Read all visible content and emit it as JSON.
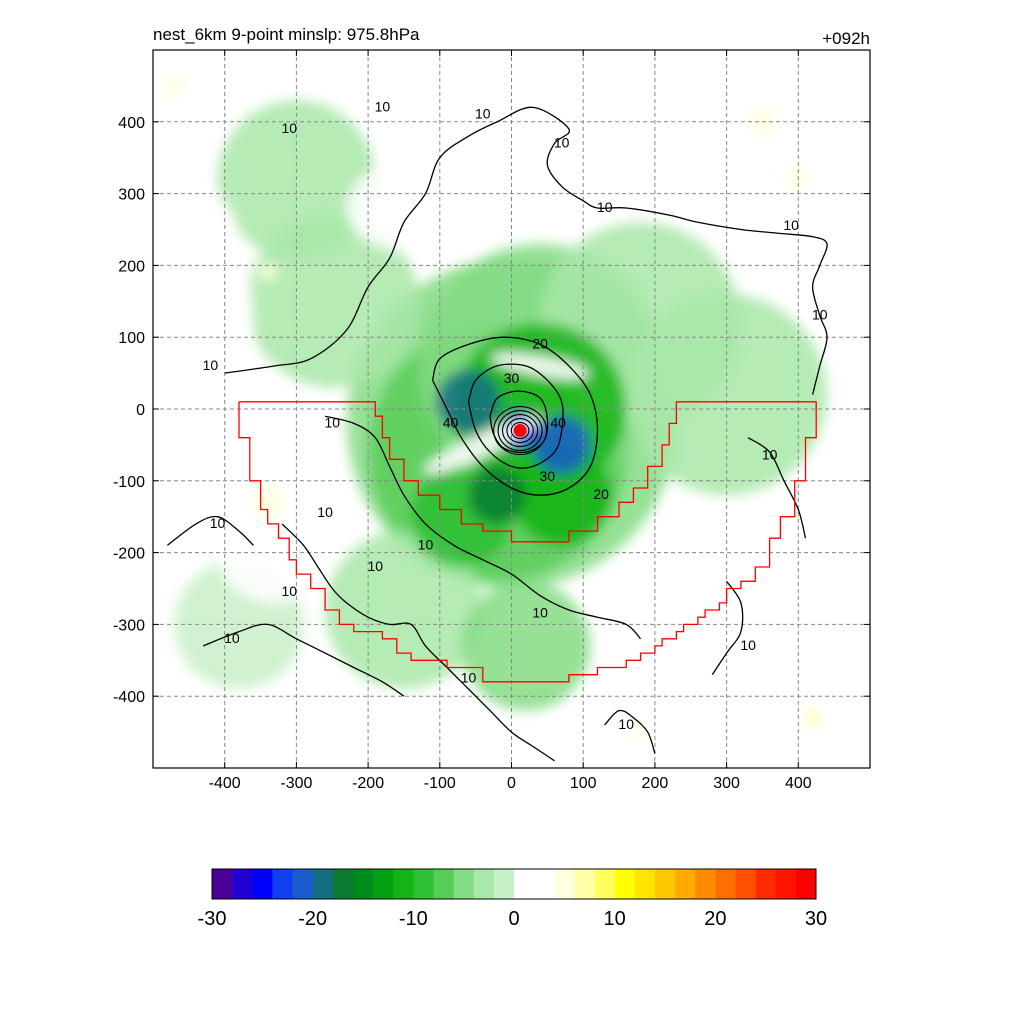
{
  "chart_data": {
    "type": "heatmap",
    "title": "nest_6km  9-point minslp: 975.8hPa",
    "time_label": "+092h",
    "xlabel": "",
    "ylabel": "",
    "xlim": [
      -500,
      500
    ],
    "ylim": [
      -500,
      500
    ],
    "x_ticks": [
      "-400",
      "-300",
      "-200",
      "-100",
      "0",
      "100",
      "200",
      "300",
      "400"
    ],
    "y_ticks": [
      "400",
      "300",
      "200",
      "100",
      "0",
      "-100",
      "-200",
      "-300",
      "-400"
    ],
    "grid": true,
    "storm_center": {
      "x": 12,
      "y": -30
    },
    "contour_levels": [
      "10",
      "20",
      "30",
      "40"
    ],
    "colorbar": {
      "min": -30,
      "max": 30,
      "tick_labels": [
        "-30",
        "-20",
        "-10",
        "0",
        "10",
        "20",
        "30"
      ],
      "colors": [
        "#4b0096",
        "#2200d4",
        "#0000ff",
        "#1040f0",
        "#1a5ccc",
        "#136e84",
        "#0a7a30",
        "#008c1c",
        "#00a010",
        "#14b414",
        "#2cc032",
        "#58ce58",
        "#84dc84",
        "#a8e8a8",
        "#c8f0c8",
        "#ffffff",
        "#ffffff",
        "#ffffe0",
        "#ffffa8",
        "#ffff60",
        "#ffff00",
        "#ffe400",
        "#ffc800",
        "#ffaa00",
        "#ff8c00",
        "#ff6e00",
        "#ff5000",
        "#ff2c00",
        "#ff1400",
        "#ff0000"
      ]
    },
    "blobs": [
      {
        "x": 0,
        "y": -20,
        "r": 230,
        "v": -5
      },
      {
        "x": -20,
        "y": -60,
        "r": 180,
        "v": -8
      },
      {
        "x": 40,
        "y": 60,
        "r": 170,
        "v": -6
      },
      {
        "x": 180,
        "y": 120,
        "r": 140,
        "v": -4
      },
      {
        "x": -250,
        "y": 150,
        "r": 120,
        "v": -3
      },
      {
        "x": -300,
        "y": 320,
        "r": 110,
        "v": -3
      },
      {
        "x": -150,
        "y": -280,
        "r": 110,
        "v": -3
      },
      {
        "x": 300,
        "y": 20,
        "r": 140,
        "v": -4
      },
      {
        "x": 20,
        "y": -330,
        "r": 90,
        "v": -5
      },
      {
        "x": -380,
        "y": -300,
        "r": 90,
        "v": -2
      },
      {
        "x": -70,
        "y": -150,
        "r": 70,
        "v": -10
      },
      {
        "x": 70,
        "y": -120,
        "r": 70,
        "v": -11
      },
      {
        "x": 40,
        "y": 0,
        "r": 120,
        "v": -12
      },
      {
        "x": -60,
        "y": 10,
        "r": 45,
        "v": -20
      },
      {
        "x": 70,
        "y": -50,
        "r": 40,
        "v": -22
      },
      {
        "x": -20,
        "y": -120,
        "r": 40,
        "v": -18
      },
      {
        "x": 12,
        "y": -30,
        "r": 25,
        "v": -26
      }
    ],
    "white_bands": [
      {
        "x": -40,
        "y": -50,
        "rx": 90,
        "ry": 16,
        "rot": -25
      },
      {
        "x": 40,
        "y": 60,
        "rx": 70,
        "ry": 14,
        "rot": 10
      },
      {
        "x": 420,
        "y": 260,
        "rx": 60,
        "ry": 120,
        "rot": 0
      },
      {
        "x": -420,
        "y": 100,
        "rx": 60,
        "ry": 200,
        "rot": 0
      },
      {
        "x": -330,
        "y": -200,
        "rx": 80,
        "ry": 70,
        "rot": 0
      },
      {
        "x": 300,
        "y": -250,
        "rx": 90,
        "ry": 110,
        "rot": 0
      },
      {
        "x": -150,
        "y": 280,
        "rx": 80,
        "ry": 60,
        "rot": 0
      }
    ],
    "yellow_spots": [
      {
        "x": -340,
        "y": -130,
        "r": 22,
        "v": 4
      },
      {
        "x": 350,
        "y": 400,
        "r": 18,
        "v": 5
      },
      {
        "x": 400,
        "y": 320,
        "r": 16,
        "v": 5
      },
      {
        "x": -340,
        "y": 190,
        "r": 12,
        "v": 4
      },
      {
        "x": -470,
        "y": 450,
        "r": 14,
        "v": 4
      },
      {
        "x": 420,
        "y": -430,
        "r": 10,
        "v": 6
      },
      {
        "x": 180,
        "y": -450,
        "r": 10,
        "v": 4
      }
    ],
    "region_outline": [
      [
        -380,
        10
      ],
      [
        -190,
        10
      ],
      [
        -190,
        -10
      ],
      [
        -180,
        -10
      ],
      [
        -180,
        -40
      ],
      [
        -170,
        -40
      ],
      [
        -170,
        -70
      ],
      [
        -150,
        -70
      ],
      [
        -150,
        -100
      ],
      [
        -130,
        -100
      ],
      [
        -130,
        -120
      ],
      [
        -100,
        -120
      ],
      [
        -100,
        -140
      ],
      [
        -70,
        -140
      ],
      [
        -70,
        -160
      ],
      [
        -40,
        -160
      ],
      [
        -40,
        -170
      ],
      [
        0,
        -170
      ],
      [
        0,
        -185
      ],
      [
        80,
        -185
      ],
      [
        80,
        -170
      ],
      [
        120,
        -170
      ],
      [
        120,
        -150
      ],
      [
        150,
        -150
      ],
      [
        150,
        -130
      ],
      [
        170,
        -130
      ],
      [
        170,
        -110
      ],
      [
        190,
        -110
      ],
      [
        190,
        -80
      ],
      [
        210,
        -80
      ],
      [
        210,
        -50
      ],
      [
        220,
        -50
      ],
      [
        220,
        -20
      ],
      [
        230,
        -20
      ],
      [
        230,
        10
      ],
      [
        425,
        10
      ],
      [
        425,
        -40
      ],
      [
        410,
        -40
      ],
      [
        410,
        -100
      ],
      [
        395,
        -100
      ],
      [
        395,
        -150
      ],
      [
        375,
        -150
      ],
      [
        375,
        -180
      ],
      [
        360,
        -180
      ],
      [
        360,
        -220
      ],
      [
        340,
        -220
      ],
      [
        340,
        -240
      ],
      [
        320,
        -240
      ],
      [
        320,
        -250
      ],
      [
        300,
        -250
      ],
      [
        300,
        -270
      ],
      [
        290,
        -270
      ],
      [
        290,
        -280
      ],
      [
        270,
        -280
      ],
      [
        270,
        -290
      ],
      [
        260,
        -290
      ],
      [
        260,
        -300
      ],
      [
        240,
        -300
      ],
      [
        240,
        -310
      ],
      [
        230,
        -310
      ],
      [
        230,
        -320
      ],
      [
        210,
        -320
      ],
      [
        210,
        -330
      ],
      [
        200,
        -330
      ],
      [
        200,
        -340
      ],
      [
        180,
        -340
      ],
      [
        180,
        -350
      ],
      [
        160,
        -350
      ],
      [
        160,
        -360
      ],
      [
        120,
        -360
      ],
      [
        120,
        -370
      ],
      [
        80,
        -370
      ],
      [
        80,
        -380
      ],
      [
        -40,
        -380
      ],
      [
        -40,
        -360
      ],
      [
        -90,
        -360
      ],
      [
        -90,
        -350
      ],
      [
        -140,
        -350
      ],
      [
        -140,
        -340
      ],
      [
        -160,
        -340
      ],
      [
        -160,
        -320
      ],
      [
        -180,
        -320
      ],
      [
        -180,
        -310
      ],
      [
        -220,
        -310
      ],
      [
        -220,
        -300
      ],
      [
        -240,
        -300
      ],
      [
        -240,
        -280
      ],
      [
        -260,
        -280
      ],
      [
        -260,
        -250
      ],
      [
        -280,
        -250
      ],
      [
        -280,
        -230
      ],
      [
        -300,
        -230
      ],
      [
        -300,
        -210
      ],
      [
        -310,
        -210
      ],
      [
        -310,
        -180
      ],
      [
        -325,
        -180
      ],
      [
        -325,
        -160
      ],
      [
        -340,
        -160
      ],
      [
        -340,
        -140
      ],
      [
        -350,
        -140
      ],
      [
        -350,
        -100
      ],
      [
        -365,
        -100
      ],
      [
        -365,
        -40
      ],
      [
        -380,
        -40
      ],
      [
        -380,
        10
      ]
    ],
    "contours": [
      {
        "level": "10",
        "pts": [
          [
            -400,
            50
          ],
          [
            -330,
            60
          ],
          [
            -280,
            70
          ],
          [
            -230,
            110
          ],
          [
            -200,
            170
          ],
          [
            -170,
            210
          ],
          [
            -150,
            260
          ],
          [
            -120,
            300
          ],
          [
            -100,
            350
          ],
          [
            -60,
            380
          ],
          [
            -20,
            400
          ],
          [
            30,
            420
          ],
          [
            80,
            390
          ],
          [
            60,
            370
          ],
          [
            50,
            340
          ],
          [
            70,
            310
          ],
          [
            100,
            290
          ],
          [
            120,
            280
          ],
          [
            160,
            280
          ],
          [
            220,
            270
          ],
          [
            260,
            260
          ],
          [
            320,
            250
          ],
          [
            370,
            245
          ],
          [
            420,
            240
          ],
          [
            440,
            230
          ],
          [
            430,
            200
          ],
          [
            420,
            170
          ],
          [
            430,
            130
          ],
          [
            440,
            100
          ],
          [
            430,
            60
          ],
          [
            420,
            20
          ]
        ]
      },
      {
        "level": "10",
        "pts": [
          [
            -260,
            -10
          ],
          [
            -220,
            -20
          ],
          [
            -190,
            -40
          ],
          [
            -170,
            -80
          ],
          [
            -150,
            -120
          ],
          [
            -120,
            -160
          ],
          [
            -80,
            -190
          ],
          [
            -40,
            -210
          ],
          [
            0,
            -230
          ],
          [
            40,
            -260
          ],
          [
            80,
            -280
          ],
          [
            120,
            -290
          ],
          [
            160,
            -300
          ],
          [
            180,
            -320
          ]
        ]
      },
      {
        "level": "10",
        "pts": [
          [
            -320,
            -160
          ],
          [
            -290,
            -190
          ],
          [
            -270,
            -220
          ],
          [
            -250,
            -250
          ],
          [
            -230,
            -270
          ],
          [
            -200,
            -290
          ],
          [
            -170,
            -300
          ],
          [
            -140,
            -300
          ],
          [
            -120,
            -330
          ],
          [
            -90,
            -360
          ],
          [
            -60,
            -390
          ],
          [
            -30,
            -420
          ],
          [
            0,
            -450
          ],
          [
            30,
            -470
          ],
          [
            60,
            -490
          ]
        ]
      },
      {
        "level": "10",
        "pts": [
          [
            -430,
            -330
          ],
          [
            -380,
            -310
          ],
          [
            -340,
            -300
          ],
          [
            -300,
            -320
          ],
          [
            -260,
            -340
          ],
          [
            -220,
            -360
          ],
          [
            -180,
            -380
          ],
          [
            -150,
            -400
          ]
        ]
      },
      {
        "level": "10",
        "pts": [
          [
            130,
            -440
          ],
          [
            150,
            -420
          ],
          [
            170,
            -430
          ],
          [
            190,
            -450
          ],
          [
            200,
            -480
          ]
        ]
      },
      {
        "level": "10",
        "pts": [
          [
            -480,
            -190
          ],
          [
            -440,
            -160
          ],
          [
            -410,
            -150
          ],
          [
            -380,
            -170
          ],
          [
            -360,
            -190
          ]
        ]
      },
      {
        "level": "10",
        "pts": [
          [
            330,
            -40
          ],
          [
            360,
            -60
          ],
          [
            380,
            -100
          ],
          [
            400,
            -140
          ],
          [
            410,
            -180
          ]
        ]
      },
      {
        "level": "10",
        "pts": [
          [
            300,
            -240
          ],
          [
            320,
            -270
          ],
          [
            320,
            -310
          ],
          [
            300,
            -340
          ],
          [
            280,
            -370
          ]
        ]
      },
      {
        "level": "20",
        "pts": [
          [
            -110,
            40
          ],
          [
            -100,
            70
          ],
          [
            -60,
            90
          ],
          [
            -10,
            100
          ],
          [
            40,
            90
          ],
          [
            80,
            60
          ],
          [
            110,
            20
          ],
          [
            120,
            -30
          ],
          [
            110,
            -80
          ],
          [
            80,
            -110
          ],
          [
            40,
            -120
          ],
          [
            0,
            -110
          ],
          [
            -40,
            -80
          ],
          [
            -70,
            -40
          ],
          [
            -90,
            0
          ],
          [
            -110,
            40
          ]
        ]
      },
      {
        "level": "30",
        "pts": [
          [
            -60,
            10
          ],
          [
            -50,
            40
          ],
          [
            -20,
            60
          ],
          [
            20,
            60
          ],
          [
            50,
            40
          ],
          [
            70,
            10
          ],
          [
            70,
            -30
          ],
          [
            60,
            -60
          ],
          [
            30,
            -80
          ],
          [
            0,
            -80
          ],
          [
            -30,
            -60
          ],
          [
            -50,
            -30
          ],
          [
            -60,
            10
          ]
        ]
      },
      {
        "level": "40",
        "pts": [
          [
            -30,
            -10
          ],
          [
            -20,
            15
          ],
          [
            10,
            25
          ],
          [
            40,
            15
          ],
          [
            50,
            -15
          ],
          [
            45,
            -45
          ],
          [
            20,
            -60
          ],
          [
            -10,
            -55
          ],
          [
            -25,
            -35
          ],
          [
            -30,
            -10
          ]
        ]
      }
    ],
    "contour_labels": [
      {
        "text": "10",
        "x": -180,
        "y": 420
      },
      {
        "text": "10",
        "x": -40,
        "y": 410
      },
      {
        "text": "10",
        "x": 70,
        "y": 370
      },
      {
        "text": "10",
        "x": 130,
        "y": 280
      },
      {
        "text": "10",
        "x": 390,
        "y": 255
      },
      {
        "text": "10",
        "x": 430,
        "y": 130
      },
      {
        "text": "10",
        "x": -310,
        "y": 390
      },
      {
        "text": "10",
        "x": -420,
        "y": 60
      },
      {
        "text": "10",
        "x": -250,
        "y": -20
      },
      {
        "text": "10",
        "x": -260,
        "y": -145
      },
      {
        "text": "10",
        "x": -120,
        "y": -190
      },
      {
        "text": "10",
        "x": -190,
        "y": -220
      },
      {
        "text": "10",
        "x": -410,
        "y": -160
      },
      {
        "text": "10",
        "x": -310,
        "y": -255
      },
      {
        "text": "10",
        "x": -390,
        "y": -320
      },
      {
        "text": "10",
        "x": 40,
        "y": -285
      },
      {
        "text": "10",
        "x": -60,
        "y": -375
      },
      {
        "text": "10",
        "x": 160,
        "y": -440
      },
      {
        "text": "10",
        "x": 360,
        "y": -65
      },
      {
        "text": "10",
        "x": 330,
        "y": -330
      },
      {
        "text": "20",
        "x": 40,
        "y": 90
      },
      {
        "text": "20",
        "x": 125,
        "y": -120
      },
      {
        "text": "30",
        "x": 0,
        "y": 42
      },
      {
        "text": "30",
        "x": 50,
        "y": -95
      },
      {
        "text": "40",
        "x": 65,
        "y": -20
      },
      {
        "text": "40",
        "x": -85,
        "y": -20
      }
    ]
  }
}
